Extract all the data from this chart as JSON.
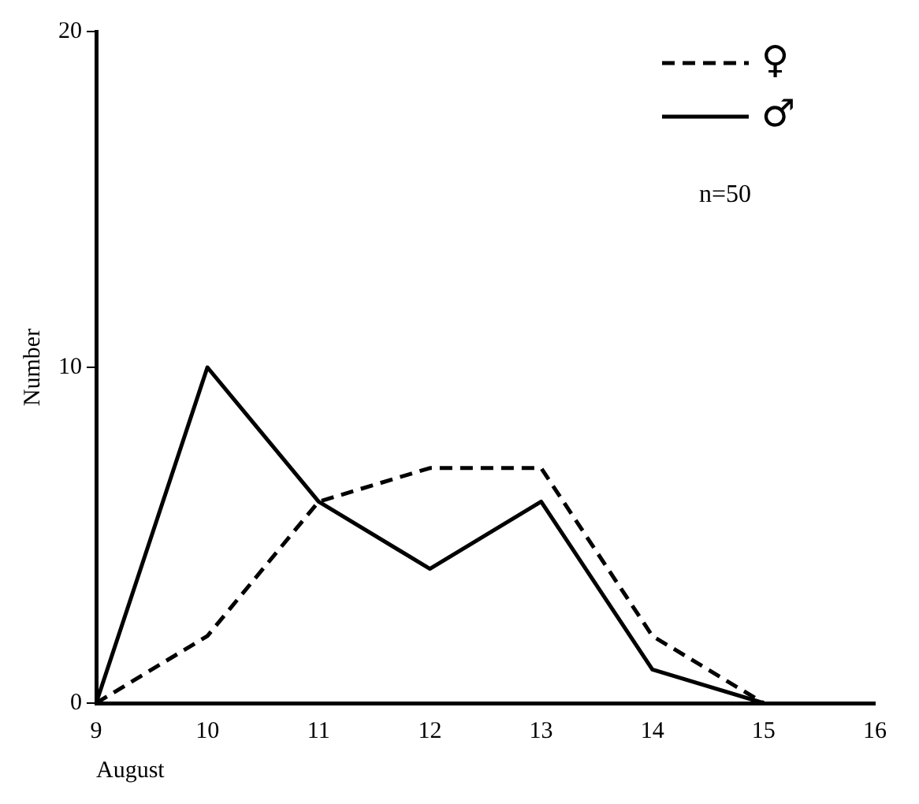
{
  "chart_data": {
    "type": "line",
    "xlabel": "August",
    "ylabel": "Number",
    "x": [
      9,
      10,
      11,
      12,
      13,
      14,
      15
    ],
    "series": [
      {
        "name": "♀",
        "color": "#000000",
        "line_style": "dashed",
        "values": [
          0,
          2,
          6,
          7,
          7,
          2,
          0
        ]
      },
      {
        "name": "♂",
        "color": "#000000",
        "line_style": "solid",
        "values": [
          0,
          10,
          6,
          4,
          6,
          1,
          0
        ]
      }
    ],
    "xlim": [
      9,
      16
    ],
    "xticks": [
      9,
      10,
      11,
      12,
      13,
      14,
      15,
      16
    ],
    "ylim": [
      0,
      20
    ],
    "yticks": [
      0,
      10,
      20
    ],
    "grid": false,
    "legend": "top right",
    "marker": "none",
    "annotations": [
      "n=50"
    ]
  }
}
